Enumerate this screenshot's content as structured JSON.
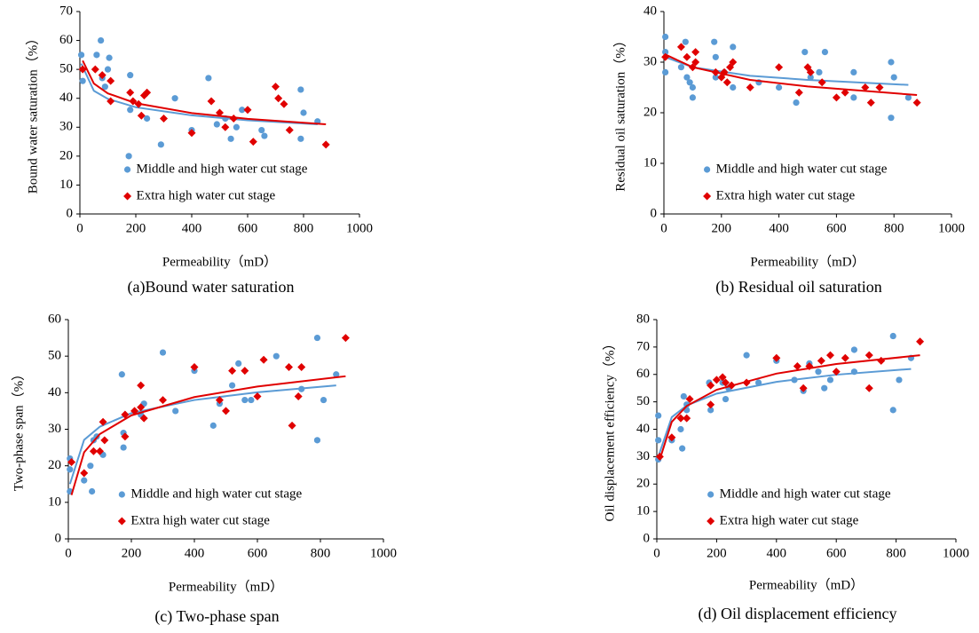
{
  "chart_data": [
    {
      "type": "scatter",
      "caption": "(a)Bound water saturation",
      "x_label": "Permeability（mD）",
      "y_label": "Bound water saturation（%）",
      "xlim": [
        0,
        1000
      ],
      "xticks": [
        0,
        200,
        400,
        600,
        800,
        1000
      ],
      "ylim": [
        0,
        70
      ],
      "yticks": [
        0,
        10,
        20,
        30,
        40,
        50,
        60,
        70
      ],
      "grid": false,
      "legend": "lower left",
      "series": [
        {
          "name": "Middle and high water cut stage",
          "color": "#5b9bd5",
          "marker": "circle",
          "x": [
            5,
            10,
            60,
            75,
            80,
            90,
            100,
            105,
            180,
            175,
            180,
            240,
            290,
            340,
            400,
            460,
            490,
            520,
            540,
            560,
            580,
            650,
            660,
            790,
            790,
            800,
            850
          ],
          "values": [
            55,
            46,
            55,
            60,
            47,
            44,
            50,
            54,
            48,
            20,
            36,
            33,
            24,
            40,
            29,
            47,
            31,
            33,
            26,
            30,
            36,
            29,
            27,
            26,
            43,
            35,
            32
          ],
          "fit_x": [
            5,
            50,
            100,
            200,
            400,
            600,
            850
          ],
          "fit_values": [
            52,
            42.6,
            39.8,
            36.9,
            34.1,
            32.4,
            31
          ]
        },
        {
          "name": "Extra high water cut stage",
          "color": "#e00000",
          "marker": "diamond",
          "x": [
            10,
            55,
            80,
            110,
            110,
            180,
            190,
            210,
            220,
            230,
            240,
            300,
            400,
            470,
            500,
            520,
            550,
            600,
            620,
            700,
            710,
            730,
            750,
            880
          ],
          "values": [
            50,
            50,
            48,
            46,
            39,
            42,
            39,
            38,
            34,
            41,
            42,
            33,
            28,
            39,
            35,
            30,
            33,
            36,
            25,
            44,
            40,
            38,
            29,
            24
          ],
          "fit_x": [
            10,
            50,
            100,
            200,
            400,
            600,
            880
          ],
          "fit_values": [
            53,
            45.1,
            41.7,
            38.3,
            34.9,
            32.9,
            31
          ]
        }
      ]
    },
    {
      "type": "scatter",
      "caption": "(b) Residual oil saturation",
      "x_label": "Permeability（mD）",
      "y_label": "Residual oil saturation（%）",
      "xlim": [
        0,
        1000
      ],
      "xticks": [
        0,
        200,
        400,
        600,
        800,
        1000
      ],
      "ylim": [
        0,
        40
      ],
      "yticks": [
        0,
        10,
        20,
        30,
        40
      ],
      "grid": false,
      "legend": "lower left",
      "series": [
        {
          "name": "Middle and high water cut stage",
          "color": "#5b9bd5",
          "marker": "circle",
          "x": [
            5,
            5,
            5,
            60,
            75,
            80,
            90,
            100,
            100,
            175,
            180,
            180,
            210,
            240,
            240,
            330,
            400,
            460,
            490,
            510,
            540,
            560,
            660,
            660,
            790,
            790,
            800,
            850
          ],
          "values": [
            35,
            32,
            28,
            29,
            34,
            27,
            26,
            25,
            23,
            34,
            31,
            27,
            28,
            33,
            25,
            26,
            25,
            22,
            32,
            27,
            28,
            32,
            28,
            23,
            30,
            19,
            27,
            23
          ],
          "fit_x": [
            5,
            100,
            300,
            500,
            850
          ],
          "fit_values": [
            31,
            29,
            27.3,
            26.5,
            25.5
          ]
        },
        {
          "name": "Extra high water cut stage",
          "color": "#e00000",
          "marker": "diamond",
          "x": [
            5,
            60,
            80,
            100,
            110,
            110,
            180,
            200,
            210,
            220,
            230,
            240,
            300,
            400,
            470,
            500,
            510,
            550,
            600,
            630,
            700,
            720,
            750,
            880
          ],
          "values": [
            31,
            33,
            31,
            29,
            32,
            30,
            28,
            27,
            28,
            26,
            29,
            30,
            25,
            29,
            24,
            29,
            28,
            26,
            23,
            24,
            25,
            22,
            25,
            22
          ],
          "fit_x": [
            5,
            100,
            300,
            500,
            880
          ],
          "fit_values": [
            31.5,
            29,
            26.5,
            25.2,
            23.5
          ]
        }
      ]
    },
    {
      "type": "scatter",
      "caption": "(c) Two-phase span",
      "x_label": "Permeability（mD）",
      "y_label": "Two-phase span（%）",
      "xlim": [
        0,
        1000
      ],
      "xticks": [
        0,
        200,
        400,
        600,
        800,
        1000
      ],
      "ylim": [
        0,
        60
      ],
      "yticks": [
        0,
        10,
        20,
        30,
        40,
        50,
        60
      ],
      "grid": false,
      "legend": "lower left",
      "series": [
        {
          "name": "Middle and high water cut stage",
          "color": "#5b9bd5",
          "marker": "circle",
          "x": [
            5,
            5,
            5,
            50,
            70,
            75,
            80,
            90,
            110,
            170,
            175,
            175,
            230,
            240,
            300,
            340,
            400,
            460,
            480,
            520,
            540,
            560,
            580,
            660,
            740,
            790,
            790,
            810,
            850
          ],
          "values": [
            22,
            19,
            13,
            16,
            20,
            13,
            27,
            28,
            23,
            45,
            29,
            25,
            34,
            37,
            51,
            35,
            46,
            31,
            37,
            42,
            48,
            38,
            38,
            50,
            41,
            27,
            55,
            38,
            45
          ],
          "fit_x": [
            5,
            50,
            100,
            200,
            400,
            600,
            850
          ],
          "fit_values": [
            15,
            27.1,
            30.7,
            34.4,
            38,
            40.1,
            42
          ]
        },
        {
          "name": "Extra high water cut stage",
          "color": "#e00000",
          "marker": "diamond",
          "x": [
            10,
            50,
            80,
            100,
            110,
            115,
            180,
            180,
            210,
            230,
            230,
            240,
            300,
            400,
            480,
            500,
            520,
            560,
            600,
            620,
            700,
            710,
            730,
            740,
            880
          ],
          "values": [
            21,
            18,
            24,
            24,
            32,
            27,
            34,
            28,
            35,
            42,
            36,
            33,
            38,
            47,
            38,
            35,
            46,
            46,
            39,
            49,
            47,
            31,
            39,
            47,
            55
          ],
          "fit_x": [
            10,
            50,
            100,
            200,
            400,
            600,
            880
          ],
          "fit_values": [
            12,
            23.7,
            28.7,
            33.8,
            38.8,
            41.7,
            44.5
          ]
        }
      ]
    },
    {
      "type": "scatter",
      "caption": "(d) Oil displacement efficiency",
      "x_label": "Permeability（mD）",
      "y_label": "Oil displacement efficiency（%）",
      "xlim": [
        0,
        1000
      ],
      "xticks": [
        0,
        200,
        400,
        600,
        800,
        1000
      ],
      "ylim": [
        0,
        80
      ],
      "yticks": [
        0,
        10,
        20,
        30,
        40,
        50,
        60,
        70,
        80
      ],
      "grid": false,
      "legend": "lower left",
      "series": [
        {
          "name": "Middle and high water cut stage",
          "color": "#5b9bd5",
          "marker": "circle",
          "x": [
            5,
            5,
            5,
            50,
            80,
            85,
            90,
            100,
            100,
            175,
            180,
            220,
            230,
            240,
            300,
            340,
            400,
            460,
            490,
            510,
            540,
            560,
            580,
            660,
            660,
            790,
            790,
            810,
            850
          ],
          "values": [
            45,
            36,
            29,
            36,
            40,
            33,
            52,
            49,
            47,
            57,
            47,
            57,
            51,
            55,
            67,
            57,
            65,
            58,
            54,
            64,
            61,
            55,
            58,
            69,
            61,
            74,
            47,
            58,
            66
          ],
          "fit_x": [
            5,
            50,
            100,
            200,
            400,
            600,
            850
          ],
          "fit_values": [
            30,
            44.4,
            48.7,
            53,
            57.3,
            59.9,
            62
          ]
        },
        {
          "name": "Extra high water cut stage",
          "color": "#e00000",
          "marker": "diamond",
          "x": [
            10,
            50,
            80,
            100,
            110,
            180,
            180,
            200,
            220,
            230,
            250,
            300,
            400,
            470,
            490,
            510,
            550,
            580,
            600,
            630,
            710,
            710,
            750,
            880
          ],
          "values": [
            30,
            37,
            44,
            44,
            51,
            49,
            56,
            58,
            59,
            57,
            56,
            57,
            66,
            63,
            55,
            63,
            65,
            67,
            61,
            66,
            55,
            67,
            65,
            72
          ],
          "fit_x": [
            10,
            50,
            100,
            200,
            400,
            600,
            880
          ],
          "fit_values": [
            29,
            42.7,
            48.5,
            54.4,
            60.3,
            63.8,
            67
          ]
        }
      ]
    }
  ]
}
